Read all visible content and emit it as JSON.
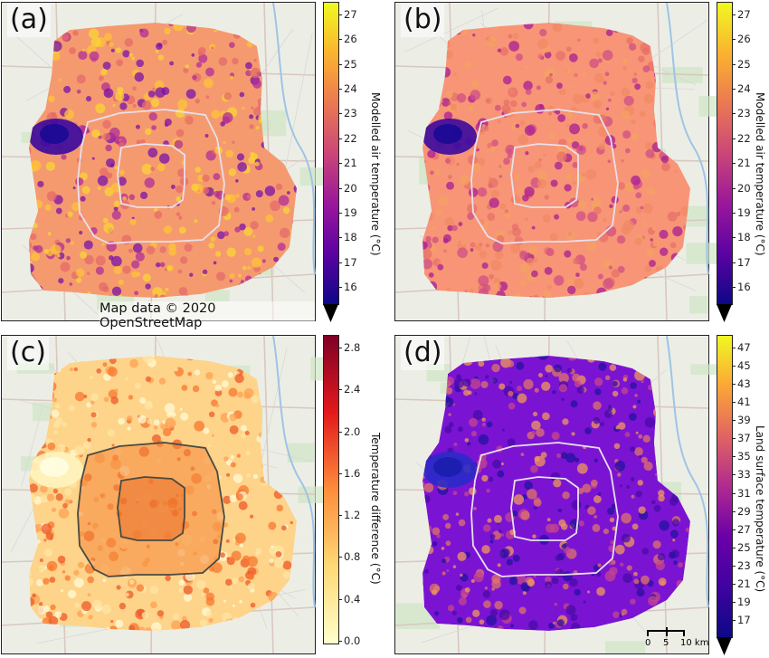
{
  "panels": [
    {
      "label": "(a)",
      "cbar_label": "Modelled air temperature (°C)",
      "ticks": [
        "27",
        "26",
        "25",
        "24",
        "23",
        "22",
        "21",
        "20",
        "19",
        "18",
        "17",
        "16"
      ],
      "scheme": "plasma_air"
    },
    {
      "label": "(b)",
      "cbar_label": "Modelled air temperature (°C)",
      "ticks": [
        "27",
        "26",
        "25",
        "24",
        "23",
        "22",
        "21",
        "20",
        "19",
        "18",
        "17",
        "16"
      ],
      "scheme": "plasma_air2"
    },
    {
      "label": "(c)",
      "cbar_label": "Temperature difference (°C)",
      "ticks": [
        "2.8",
        "2.4",
        "2.0",
        "1.6",
        "1.2",
        "0.8",
        "0.4",
        "0.0"
      ],
      "scheme": "ylorrd"
    },
    {
      "label": "(d)",
      "cbar_label": "Land surface temperature (°C)",
      "ticks": [
        "47",
        "45",
        "43",
        "41",
        "39",
        "37",
        "35",
        "33",
        "31",
        "29",
        "27",
        "25",
        "23",
        "21",
        "19",
        "17"
      ],
      "scheme": "plasma_lst"
    }
  ],
  "credit": "Map data © 2020 OpenStreetMap",
  "scalebar": {
    "labels": [
      "0",
      "5",
      "10 km"
    ]
  },
  "colors": {
    "plasma_air": [
      "#0d0887",
      "#5b02a3",
      "#9a179b",
      "#cb4678",
      "#eb7852",
      "#fbb32f",
      "#f0f921"
    ],
    "ylorrd": [
      "#ffffcc",
      "#fed976",
      "#fd8d3c",
      "#e31a1c",
      "#800026"
    ],
    "plasma_lst": [
      "#0d0887",
      "#3f03a1",
      "#6a00a8",
      "#b12a90",
      "#e16462",
      "#fca636",
      "#f0f921"
    ]
  }
}
